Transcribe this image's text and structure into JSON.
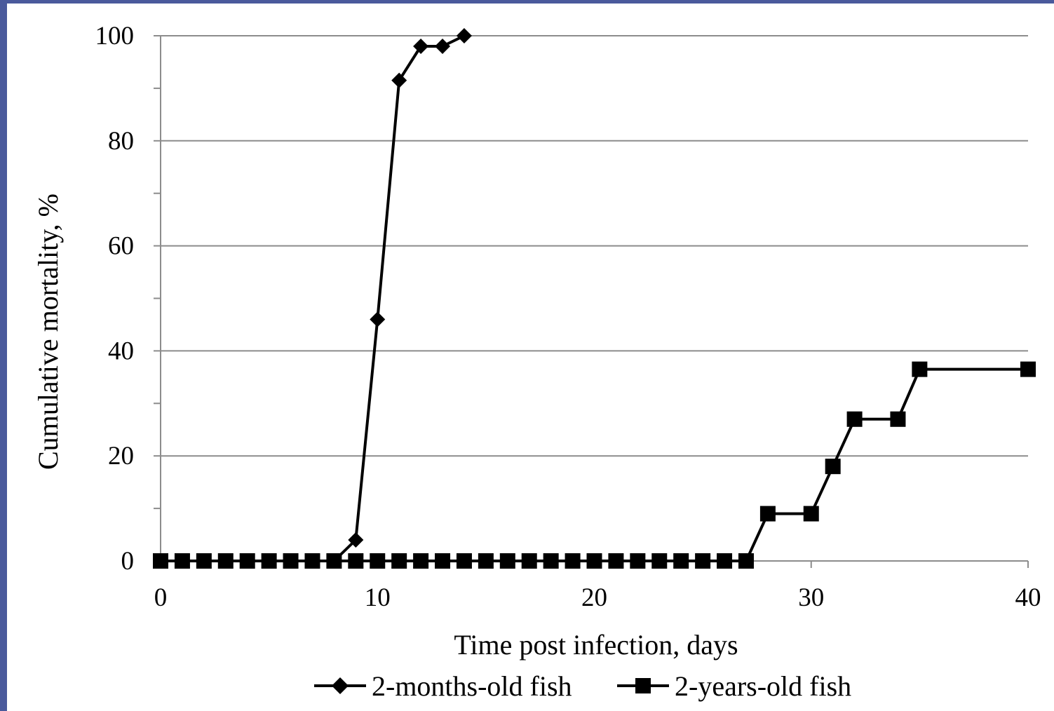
{
  "chart_data": {
    "type": "line",
    "xlabel": "Time post infection, days",
    "ylabel": "Cumulative mortality, %",
    "xlim": [
      0,
      40
    ],
    "ylim": [
      0,
      100
    ],
    "x_ticks": [
      0,
      10,
      20,
      30,
      40
    ],
    "y_ticks": [
      0,
      20,
      40,
      60,
      80,
      100
    ],
    "y_minor_step": 10,
    "grid": "horizontal major",
    "legend_position": "bottom",
    "series": [
      {
        "name": "2-months-old fish",
        "marker": "diamond",
        "color": "#000000",
        "x": [
          0,
          1,
          2,
          3,
          4,
          5,
          6,
          7,
          8,
          9,
          10,
          11,
          12,
          13,
          14
        ],
        "y": [
          0,
          0,
          0,
          0,
          0,
          0,
          0,
          0,
          0,
          4,
          46,
          91.5,
          98,
          98,
          100
        ]
      },
      {
        "name": "2-years-old fish",
        "marker": "square",
        "color": "#000000",
        "x": [
          0,
          1,
          2,
          3,
          4,
          5,
          6,
          7,
          8,
          9,
          10,
          11,
          12,
          13,
          14,
          15,
          16,
          17,
          18,
          19,
          20,
          21,
          22,
          23,
          24,
          25,
          26,
          27,
          28,
          30,
          31,
          32,
          34,
          35,
          40
        ],
        "y": [
          0,
          0,
          0,
          0,
          0,
          0,
          0,
          0,
          0,
          0,
          0,
          0,
          0,
          0,
          0,
          0,
          0,
          0,
          0,
          0,
          0,
          0,
          0,
          0,
          0,
          0,
          0,
          0,
          9,
          9,
          18,
          27,
          27,
          36.5,
          36.5
        ]
      }
    ]
  }
}
